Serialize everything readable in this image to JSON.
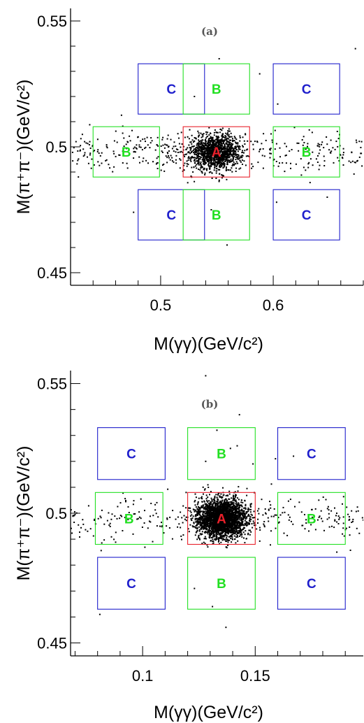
{
  "chart_data": [
    {
      "type": "scatter",
      "panel_label": "(a)",
      "xlabel": "M(γγ)(GeV/c²)",
      "ylabel": "M(π⁺π⁻)(GeV/c²)",
      "xlim": [
        0.42,
        0.68
      ],
      "ylim": [
        0.445,
        0.555
      ],
      "x_ticks": [
        0.5,
        0.6
      ],
      "x_tick_labels": [
        "0.5",
        "0.6"
      ],
      "y_ticks": [
        0.45,
        0.5,
        0.55
      ],
      "y_tick_labels": [
        "0.45",
        "0.5",
        "0.55"
      ],
      "regions": [
        {
          "label": "C",
          "x": [
            0.48,
            0.539
          ],
          "y": [
            0.513,
            0.533
          ]
        },
        {
          "label": "B",
          "x": [
            0.52,
            0.579
          ],
          "y": [
            0.513,
            0.533
          ]
        },
        {
          "label": "C",
          "x": [
            0.6,
            0.659
          ],
          "y": [
            0.513,
            0.533
          ]
        },
        {
          "label": "B",
          "x": [
            0.44,
            0.499
          ],
          "y": [
            0.488,
            0.508
          ]
        },
        {
          "label": "A",
          "x": [
            0.52,
            0.579
          ],
          "y": [
            0.488,
            0.508
          ]
        },
        {
          "label": "B",
          "x": [
            0.6,
            0.659
          ],
          "y": [
            0.488,
            0.508
          ]
        },
        {
          "label": "C",
          "x": [
            0.48,
            0.539
          ],
          "y": [
            0.463,
            0.483
          ]
        },
        {
          "label": "B",
          "x": [
            0.52,
            0.579
          ],
          "y": [
            0.463,
            0.483
          ]
        },
        {
          "label": "C",
          "x": [
            0.6,
            0.659
          ],
          "y": [
            0.463,
            0.483
          ]
        }
      ],
      "signal": {
        "x_center": 0.549,
        "x_sigma": 0.011,
        "y_center": 0.498,
        "y_sigma": 0.0035,
        "count": 1300
      },
      "background": {
        "count": 420,
        "y_sigma": 0.0045
      },
      "outliers": [
        [
          0.552,
          0.535
        ],
        [
          0.673,
          0.539
        ],
        [
          0.588,
          0.529
        ],
        [
          0.604,
          0.517
        ],
        [
          0.476,
          0.474
        ],
        [
          0.559,
          0.461
        ],
        [
          0.603,
          0.478
        ],
        [
          0.648,
          0.48
        ],
        [
          0.53,
          0.52
        ],
        [
          0.545,
          0.475
        ]
      ]
    },
    {
      "type": "scatter",
      "panel_label": "(b)",
      "xlabel": "M(γγ)(GeV/c²)",
      "ylabel": "M(π⁺π⁻)(GeV/c²)",
      "xlim": [
        0.068,
        0.198
      ],
      "ylim": [
        0.445,
        0.555
      ],
      "x_ticks": [
        0.1,
        0.15
      ],
      "x_tick_labels": [
        "0.1",
        "0.15"
      ],
      "y_ticks": [
        0.45,
        0.5,
        0.55
      ],
      "y_tick_labels": [
        "0.45",
        "0.5",
        "0.55"
      ],
      "regions": [
        {
          "label": "C",
          "x": [
            0.08,
            0.11
          ],
          "y": [
            0.513,
            0.533
          ]
        },
        {
          "label": "B",
          "x": [
            0.12,
            0.15
          ],
          "y": [
            0.513,
            0.533
          ]
        },
        {
          "label": "C",
          "x": [
            0.16,
            0.19
          ],
          "y": [
            0.513,
            0.533
          ]
        },
        {
          "label": "B",
          "x": [
            0.079,
            0.109
          ],
          "y": [
            0.488,
            0.508
          ]
        },
        {
          "label": "A",
          "x": [
            0.12,
            0.15
          ],
          "y": [
            0.488,
            0.508
          ]
        },
        {
          "label": "B",
          "x": [
            0.16,
            0.19
          ],
          "y": [
            0.488,
            0.508
          ]
        },
        {
          "label": "C",
          "x": [
            0.08,
            0.11
          ],
          "y": [
            0.463,
            0.483
          ]
        },
        {
          "label": "B",
          "x": [
            0.12,
            0.15
          ],
          "y": [
            0.463,
            0.483
          ]
        },
        {
          "label": "C",
          "x": [
            0.16,
            0.19
          ],
          "y": [
            0.463,
            0.483
          ]
        }
      ],
      "signal": {
        "x_center": 0.135,
        "x_sigma": 0.0055,
        "y_center": 0.498,
        "y_sigma": 0.0038,
        "count": 2800
      },
      "background": {
        "count": 300,
        "y_sigma": 0.0045
      },
      "outliers": [
        [
          0.143,
          0.538
        ],
        [
          0.133,
          0.532
        ],
        [
          0.139,
          0.525
        ],
        [
          0.128,
          0.52
        ],
        [
          0.142,
          0.526
        ],
        [
          0.137,
          0.456
        ],
        [
          0.131,
          0.464
        ],
        [
          0.081,
          0.461
        ],
        [
          0.123,
          0.471
        ],
        [
          0.159,
          0.521
        ],
        [
          0.167,
          0.522
        ],
        [
          0.149,
          0.519
        ],
        [
          0.128,
          0.553
        ]
      ]
    }
  ]
}
